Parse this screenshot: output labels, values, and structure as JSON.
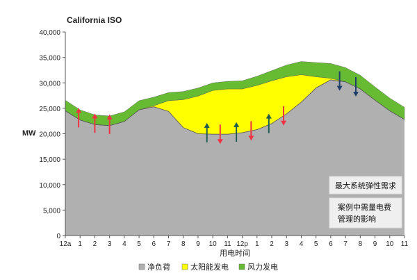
{
  "chart_data": {
    "type": "area",
    "title": "California ISO",
    "ylabel": "MW",
    "xlabel": "用电时间",
    "ylim": [
      0,
      40000
    ],
    "yticks": [
      0,
      5000,
      10000,
      15000,
      20000,
      25000,
      30000,
      35000,
      40000
    ],
    "ytick_labels": [
      "0",
      "5,000",
      "10,000",
      "15,000",
      "20,000",
      "25,000",
      "30,000",
      "35,000",
      "40,000"
    ],
    "categories": [
      "12a",
      "1",
      "2",
      "3",
      "4",
      "5",
      "6",
      "7",
      "8",
      "9",
      "10",
      "11",
      "12p",
      "1",
      "2",
      "3",
      "4",
      "5",
      "6",
      "7",
      "8",
      "9",
      "10",
      "11"
    ],
    "x": [
      0,
      1,
      2,
      3,
      4,
      5,
      6,
      7,
      8,
      9,
      10,
      11,
      12,
      13,
      14,
      15,
      16,
      17,
      18,
      19,
      20,
      21,
      22,
      23
    ],
    "stacked": true,
    "grid": false,
    "legend_position": "bottom",
    "series": [
      {
        "name": "净负荷",
        "color": "#b0b0b0",
        "values": [
          24500,
          22700,
          21800,
          21600,
          22400,
          24700,
          25300,
          24400,
          21200,
          20000,
          19900,
          19900,
          20200,
          20800,
          22000,
          23900,
          26200,
          29000,
          30600,
          30200,
          28800,
          26600,
          24500,
          22800
        ]
      },
      {
        "name": "太阳能发电",
        "color": "#ffff00",
        "values": [
          0,
          0,
          0,
          0,
          0,
          0,
          200,
          2100,
          5500,
          7400,
          8600,
          8900,
          8600,
          8700,
          8400,
          7300,
          5400,
          2200,
          300,
          0,
          0,
          0,
          0,
          0
        ]
      },
      {
        "name": "风力发电",
        "color": "#66bb33",
        "values": [
          2100,
          2000,
          1900,
          1900,
          1900,
          1800,
          1700,
          1600,
          1600,
          1600,
          1500,
          1500,
          1600,
          1800,
          2000,
          2300,
          2600,
          2800,
          2900,
          2800,
          2700,
          2600,
          2500,
          2400
        ]
      }
    ],
    "arrows": [
      {
        "x": 0.9,
        "dir": "up",
        "color": "#ee3344"
      },
      {
        "x": 2,
        "dir": "up",
        "color": "#ee3344"
      },
      {
        "x": 3,
        "dir": "up",
        "color": "#ee3344"
      },
      {
        "x": 9.6,
        "dir": "up",
        "color": "#1f5c4f"
      },
      {
        "x": 10.5,
        "dir": "down",
        "color": "#ee3344"
      },
      {
        "x": 11.6,
        "dir": "up",
        "color": "#1f5c4f"
      },
      {
        "x": 12.6,
        "dir": "down",
        "color": "#ee3344"
      },
      {
        "x": 13.8,
        "dir": "up",
        "color": "#1f5c4f"
      },
      {
        "x": 14.8,
        "dir": "down",
        "color": "#ee3344"
      },
      {
        "x": 18.6,
        "dir": "down",
        "color": "#1f3f6a"
      },
      {
        "x": 19.7,
        "dir": "down",
        "color": "#1f3f6a"
      }
    ],
    "annotations": [
      "最大系统弹性需求",
      "案例中需量电费",
      "管理的影响"
    ]
  }
}
